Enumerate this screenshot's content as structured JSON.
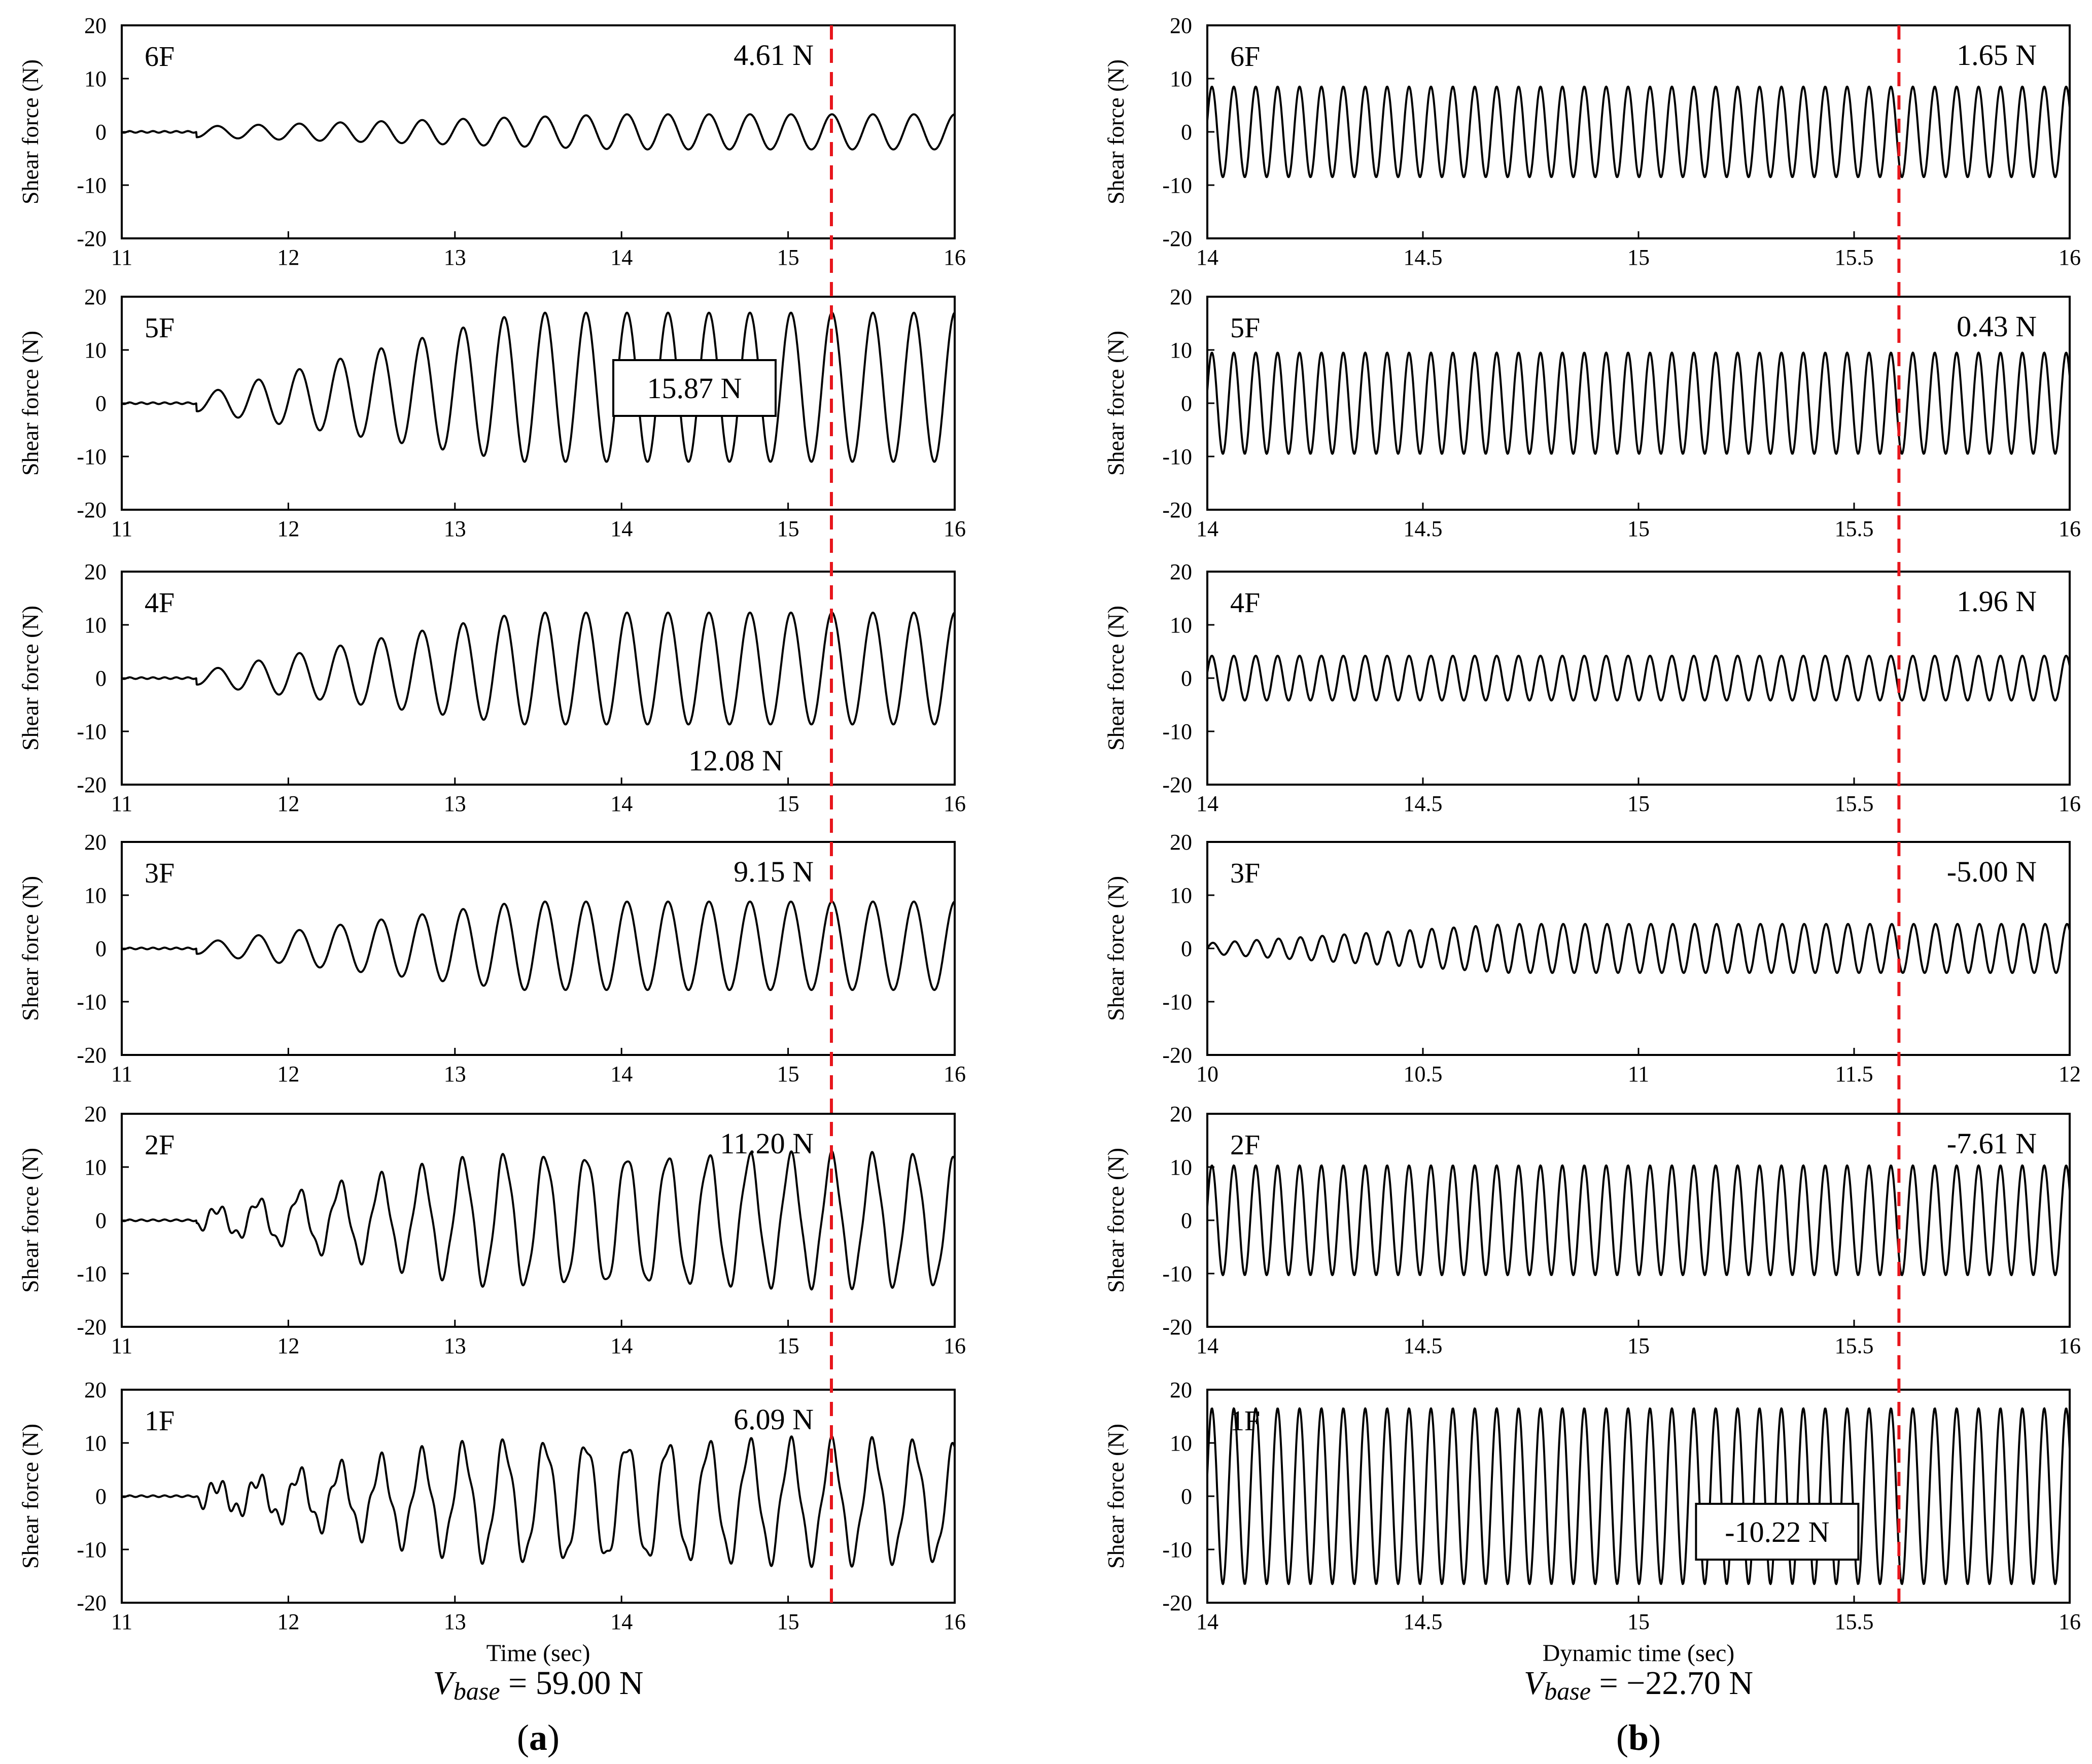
{
  "chart_data": [
    {
      "id": "a",
      "type": "line",
      "caption_letter": "a",
      "caption_open": "(",
      "caption_close": ")",
      "xlabel": "Time (sec)",
      "base_shear_symbol": "V",
      "base_shear_subscript": "base",
      "base_shear_eq": "= 59.00 N",
      "marker_time": 15.26,
      "panels": [
        {
          "floor": "6F",
          "ylabel": "Shear force (N)",
          "xlim": [
            11,
            16
          ],
          "xticks": [
            "11",
            "12",
            "13",
            "14",
            "15",
            "16"
          ],
          "ylim": [
            -20,
            20
          ],
          "yticks": [
            "20",
            "10",
            "0",
            "-10",
            "-20"
          ],
          "annotation": "4.61 N",
          "annotation_boxed": false,
          "amp_min": 1.0,
          "amp_max": 3.3,
          "offset": 0.0,
          "period": 0.246,
          "onset": 11.45,
          "growth_end": 14.0,
          "jitter": 0.0
        },
        {
          "floor": "5F",
          "ylabel": "Shear force (N)",
          "xlim": [
            11,
            16
          ],
          "xticks": [
            "11",
            "12",
            "13",
            "14",
            "15",
            "16"
          ],
          "ylim": [
            -20,
            20
          ],
          "yticks": [
            "20",
            "10",
            "0",
            "-10",
            "-20"
          ],
          "annotation": "15.87 N",
          "annotation_boxed": true,
          "amp_min": 1.5,
          "amp_max": 14.0,
          "offset": 3.0,
          "period": 0.246,
          "onset": 11.45,
          "growth_end": 13.4,
          "jitter": 0.0
        },
        {
          "floor": "4F",
          "ylabel": "Shear force (N)",
          "xlim": [
            11,
            16
          ],
          "xticks": [
            "11",
            "12",
            "13",
            "14",
            "15",
            "16"
          ],
          "ylim": [
            -20,
            20
          ],
          "yticks": [
            "20",
            "10",
            "0",
            "-10",
            "-20"
          ],
          "annotation": "12.08 N",
          "annotation_boxed": false,
          "amp_min": 1.2,
          "amp_max": 10.5,
          "offset": 1.8,
          "period": 0.246,
          "onset": 11.45,
          "growth_end": 13.4,
          "jitter": 0.0
        },
        {
          "floor": "3F",
          "ylabel": "Shear force (N)",
          "xlim": [
            11,
            16
          ],
          "xticks": [
            "11",
            "12",
            "13",
            "14",
            "15",
            "16"
          ],
          "ylim": [
            -20,
            20
          ],
          "yticks": [
            "20",
            "10",
            "0",
            "-10",
            "-20"
          ],
          "annotation": "9.15 N",
          "annotation_boxed": false,
          "amp_min": 1.0,
          "amp_max": 8.3,
          "offset": 0.5,
          "period": 0.246,
          "onset": 11.45,
          "growth_end": 13.4,
          "jitter": 0.0
        },
        {
          "floor": "2F",
          "ylabel": "Shear force (N)",
          "xlim": [
            11,
            16
          ],
          "xticks": [
            "11",
            "12",
            "13",
            "14",
            "15",
            "16"
          ],
          "ylim": [
            -20,
            20
          ],
          "yticks": [
            "20",
            "10",
            "0",
            "-10",
            "-20"
          ],
          "annotation": "11.20 N",
          "annotation_boxed": false,
          "amp_min": 1.5,
          "amp_max": 12.0,
          "offset": 0.0,
          "period": 0.246,
          "onset": 11.45,
          "growth_end": 13.2,
          "jitter": 1.0
        },
        {
          "floor": "1F",
          "ylabel": "Shear force (N)",
          "xlim": [
            11,
            16
          ],
          "xticks": [
            "11",
            "12",
            "13",
            "14",
            "15",
            "16"
          ],
          "ylim": [
            -20,
            20
          ],
          "yticks": [
            "20",
            "10",
            "0",
            "-10",
            "-20"
          ],
          "annotation": "6.09 N",
          "annotation_boxed": false,
          "amp_min": 1.5,
          "amp_max": 10.8,
          "offset": -1.0,
          "period": 0.246,
          "onset": 11.45,
          "growth_end": 13.2,
          "jitter": 1.5
        }
      ]
    },
    {
      "id": "b",
      "type": "line",
      "caption_letter": "b",
      "caption_open": "(",
      "caption_close": ")",
      "xlabel": "Dynamic time (sec)",
      "base_shear_symbol": "V",
      "base_shear_subscript": "base",
      "base_shear_eq": "= −22.70 N",
      "marker_time_fraction": 0.802,
      "panels": [
        {
          "floor": "6F",
          "ylabel": "Shear force (N)",
          "xlim": [
            14,
            16
          ],
          "xticks": [
            "14",
            "14.5",
            "15",
            "15.5",
            "16"
          ],
          "ylim": [
            -20,
            20
          ],
          "yticks": [
            "20",
            "10",
            "0",
            "-10",
            "-20"
          ],
          "annotation": "1.65 N",
          "annotation_boxed": false,
          "amp": 8.5,
          "offset": 0.0,
          "period": 0.0508,
          "phase": 0.25
        },
        {
          "floor": "5F",
          "ylabel": "Shear force (N)",
          "xlim": [
            14,
            16
          ],
          "xticks": [
            "14",
            "14.5",
            "15",
            "15.5",
            "16"
          ],
          "ylim": [
            -20,
            20
          ],
          "yticks": [
            "20",
            "10",
            "0",
            "-10",
            "-20"
          ],
          "annotation": "0.43 N",
          "annotation_boxed": false,
          "amp": 9.5,
          "offset": 0.0,
          "period": 0.0508,
          "phase": 0.25
        },
        {
          "floor": "4F",
          "ylabel": "Shear force (N)",
          "xlim": [
            14,
            16
          ],
          "xticks": [
            "14",
            "14.5",
            "15",
            "15.5",
            "16"
          ],
          "ylim": [
            -20,
            20
          ],
          "yticks": [
            "20",
            "10",
            "0",
            "-10",
            "-20"
          ],
          "annotation": "1.96 N",
          "annotation_boxed": false,
          "amp": 4.2,
          "offset": 0.0,
          "period": 0.0508,
          "phase": 0.25
        },
        {
          "floor": "3F",
          "ylabel": "Shear force (N)",
          "xlim": [
            10,
            12
          ],
          "xticks": [
            "10",
            "10.5",
            "11",
            "11.5",
            "12"
          ],
          "ylim": [
            -20,
            20
          ],
          "yticks": [
            "20",
            "10",
            "0",
            "-10",
            "-20"
          ],
          "annotation": "-5.00 N",
          "annotation_boxed": false,
          "amp": 4.6,
          "offset": 0.0,
          "period": 0.0508,
          "phase": 0.0,
          "ramp_end": 10.7,
          "amp_start": 1.0
        },
        {
          "floor": "2F",
          "ylabel": "Shear force (N)",
          "xlim": [
            14,
            16
          ],
          "xticks": [
            "14",
            "14.5",
            "15",
            "15.5",
            "16"
          ],
          "ylim": [
            -20,
            20
          ],
          "yticks": [
            "20",
            "10",
            "0",
            "-10",
            "-20"
          ],
          "annotation": "-7.61 N",
          "annotation_boxed": false,
          "amp": 10.3,
          "offset": 0.0,
          "period": 0.0508,
          "phase": 0.25
        },
        {
          "floor": "1F",
          "ylabel": "Shear force (N)",
          "xlim": [
            14,
            16
          ],
          "xticks": [
            "14",
            "14.5",
            "15",
            "15.5",
            "16"
          ],
          "ylim": [
            -20,
            20
          ],
          "yticks": [
            "20",
            "10",
            "0",
            "-10",
            "-20"
          ],
          "annotation": "-10.22 N",
          "annotation_boxed": true,
          "amp": 16.5,
          "offset": 0.0,
          "period": 0.0508,
          "phase": 0.25
        }
      ]
    }
  ],
  "colors": {
    "line": "#000000",
    "marker": "#e8161c",
    "axis": "#000000"
  }
}
